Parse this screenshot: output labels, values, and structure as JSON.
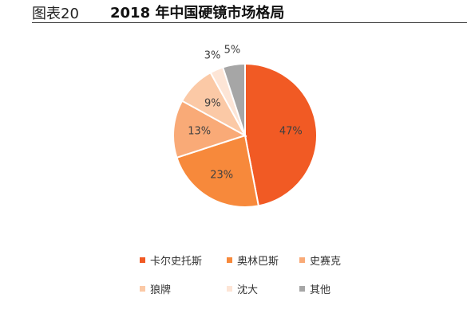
{
  "header": {
    "figure_label": "图表20",
    "title": "2018 年中国硬镜市场格局"
  },
  "chart_data": {
    "type": "pie",
    "title": "2018 年中国硬镜市场格局",
    "labels": [
      "卡尔史托斯",
      "奥林巴斯",
      "史赛克",
      "狼牌",
      "沈大",
      "其他"
    ],
    "values": [
      47,
      23,
      13,
      9,
      3,
      5
    ],
    "data_labels": [
      "47%",
      "23%",
      "13%",
      "9%",
      "3%",
      "5%"
    ],
    "colors": [
      "#f15a24",
      "#f7893b",
      "#f9aa77",
      "#fbc9a6",
      "#fde5d6",
      "#a6a6a6"
    ],
    "start_angle": "12 o'clock",
    "direction": "clockwise",
    "legend_position": "bottom"
  }
}
